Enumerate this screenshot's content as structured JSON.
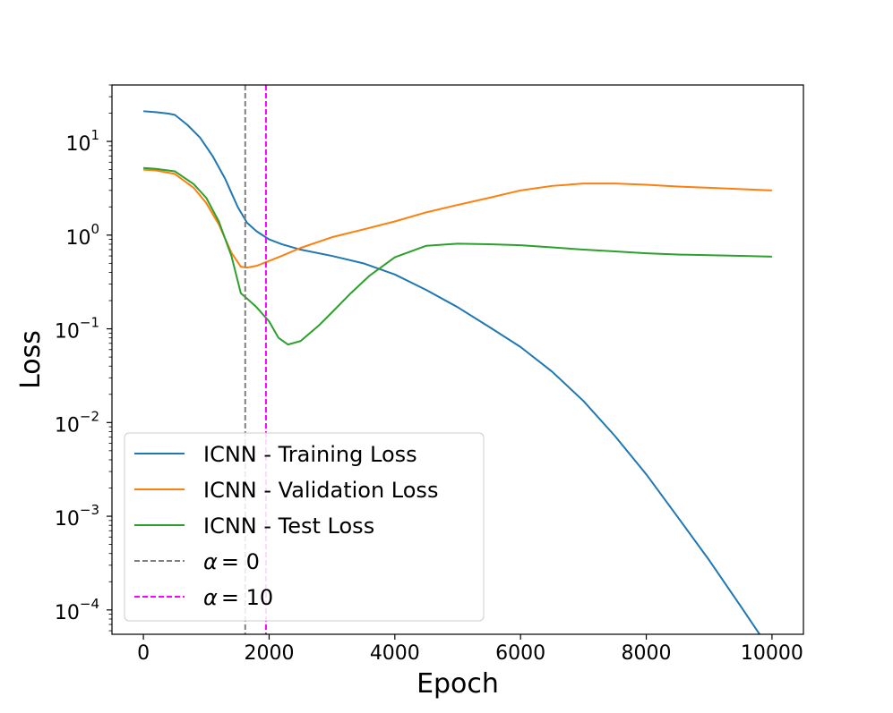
{
  "chart_data": {
    "type": "line",
    "title": "",
    "xlabel": "Epoch",
    "ylabel": "Loss",
    "xlim": [
      -500,
      10500
    ],
    "ylim": [
      5.5e-05,
      40
    ],
    "yscale": "log",
    "grid": false,
    "legend_position": "bottom-left",
    "x_ticks": [
      0,
      2000,
      4000,
      6000,
      8000,
      10000
    ],
    "x_tick_labels": [
      "0",
      "2000",
      "4000",
      "6000",
      "8000",
      "10000"
    ],
    "y_ticks": [
      10,
      1,
      0.1,
      0.01,
      0.001,
      0.0001
    ],
    "y_tick_labels": [
      {
        "base": "10",
        "exp": "1"
      },
      {
        "base": "10",
        "exp": "0"
      },
      {
        "base": "10",
        "exp": "−1"
      },
      {
        "base": "10",
        "exp": "−2"
      },
      {
        "base": "10",
        "exp": "−3"
      },
      {
        "base": "10",
        "exp": "−4"
      }
    ],
    "series": [
      {
        "name": "ICNN - Training Loss",
        "color": "#1f77b4",
        "x": [
          0,
          200,
          400,
          500,
          700,
          900,
          1100,
          1300,
          1500,
          1650,
          1800,
          2000,
          2200,
          2500,
          3000,
          3500,
          4000,
          4500,
          5000,
          5500,
          6000,
          6500,
          7000,
          7500,
          8000,
          8500,
          9000,
          9500,
          10000
        ],
        "y": [
          21,
          20.5,
          19.8,
          19.2,
          15,
          11,
          7,
          4,
          2.0,
          1.35,
          1.1,
          0.9,
          0.8,
          0.7,
          0.6,
          0.5,
          0.38,
          0.26,
          0.17,
          0.105,
          0.064,
          0.035,
          0.017,
          0.0072,
          0.0028,
          0.00098,
          0.00034,
          0.00011,
          3.5e-05
        ]
      },
      {
        "name": "ICNN - Validation Loss",
        "color": "#ff7f0e",
        "x": [
          0,
          200,
          500,
          800,
          1000,
          1200,
          1400,
          1550,
          1650,
          1800,
          2000,
          2200,
          2500,
          3000,
          3500,
          4000,
          4500,
          5000,
          5500,
          6000,
          6500,
          7000,
          7500,
          8000,
          8500,
          9000,
          9500,
          10000
        ],
        "y": [
          5.0,
          4.9,
          4.5,
          3.2,
          2.2,
          1.3,
          0.65,
          0.46,
          0.45,
          0.47,
          0.53,
          0.6,
          0.73,
          0.95,
          1.15,
          1.4,
          1.75,
          2.1,
          2.5,
          3.0,
          3.35,
          3.55,
          3.55,
          3.45,
          3.3,
          3.2,
          3.1,
          3.0
        ]
      },
      {
        "name": "ICNN - Test Loss",
        "color": "#2ca02c",
        "x": [
          0,
          200,
          500,
          800,
          1000,
          1200,
          1400,
          1550,
          1650,
          1800,
          2000,
          2150,
          2300,
          2500,
          2800,
          3000,
          3300,
          3600,
          4000,
          4500,
          5000,
          5500,
          6000,
          6500,
          7000,
          7500,
          8000,
          8500,
          9000,
          9500,
          10000
        ],
        "y": [
          5.2,
          5.1,
          4.8,
          3.5,
          2.5,
          1.4,
          0.6,
          0.24,
          0.21,
          0.17,
          0.12,
          0.08,
          0.068,
          0.074,
          0.11,
          0.15,
          0.24,
          0.37,
          0.58,
          0.77,
          0.81,
          0.8,
          0.78,
          0.74,
          0.7,
          0.67,
          0.64,
          0.62,
          0.61,
          0.6,
          0.59
        ]
      }
    ],
    "vlines": [
      {
        "name": "α = 0",
        "label_symbol": "α",
        "label_value": "= 0",
        "x": 1620,
        "color": "#7f7f7f"
      },
      {
        "name": "α = 10",
        "label_symbol": "α",
        "label_value": "= 10",
        "x": 1950,
        "color": "#ff00ff"
      }
    ]
  }
}
